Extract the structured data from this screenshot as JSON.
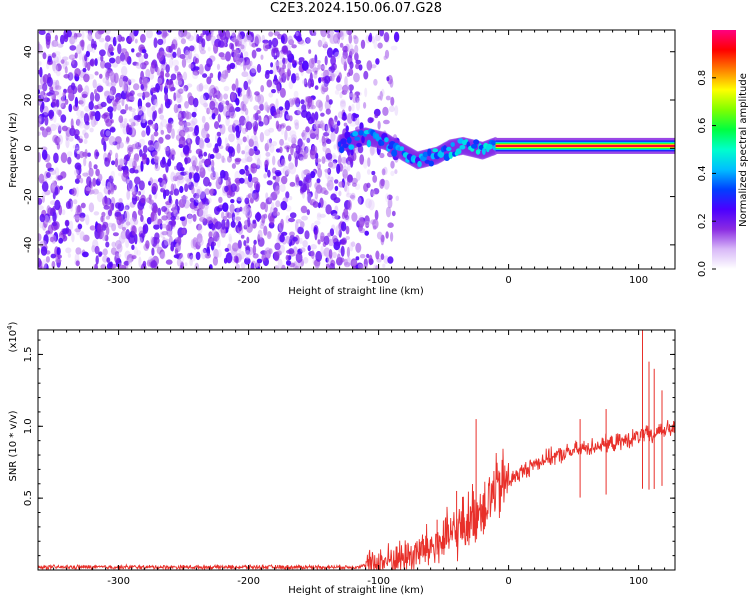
{
  "figure": {
    "title": "C2E3.2024.150.06.07.G28"
  },
  "chart_data": [
    {
      "type": "heatmap",
      "xlabel": "Height of straight line (km)",
      "ylabel": "Frequency (Hz)",
      "xlim": [
        -362,
        128
      ],
      "ylim": [
        -50,
        49
      ],
      "xticks": [
        -300,
        -200,
        -100,
        0,
        100
      ],
      "yticks": [
        -40,
        -20,
        0,
        20,
        40
      ],
      "colorbar": {
        "label": "Normalized spectral amplitude",
        "range": [
          0,
          1
        ],
        "ticks": [
          "0.0",
          "0.2",
          "0.4",
          "0.6",
          "0.8"
        ],
        "colormap": [
          "#ffffff",
          "#d8b8f8",
          "#8a2be2",
          "#4b00ff",
          "#0040ff",
          "#00bfff",
          "#00ffcc",
          "#00ff40",
          "#80ff00",
          "#ffff00",
          "#ff8000",
          "#ff0000",
          "#ff0080"
        ]
      },
      "noise_region": {
        "x": [
          -362,
          -105
        ],
        "y": [
          -50,
          49
        ],
        "description_level": 0.3
      },
      "transition_region": {
        "x": [
          -130,
          -40
        ],
        "center_freq": [
          [
            -130,
            2
          ],
          [
            -110,
            5
          ],
          [
            -95,
            3
          ],
          [
            -80,
            -2
          ],
          [
            -70,
            -5
          ],
          [
            -55,
            -3
          ],
          [
            -45,
            0
          ],
          [
            -35,
            1
          ],
          [
            -20,
            -1
          ],
          [
            -10,
            1
          ]
        ]
      },
      "ridge": {
        "x": [
          -10,
          128
        ],
        "center_freq": 1,
        "peak_level": 0.95
      }
    },
    {
      "type": "line",
      "xlabel": "Height of straight line (km)",
      "ylabel": "SNR (10 * v/v)",
      "y_multiplier": "(x10",
      "y_multiplier_exp": "4",
      "y_multiplier_close": ")",
      "xlim": [
        -362,
        128
      ],
      "ylim": [
        0,
        1.67
      ],
      "xticks": [
        -300,
        -200,
        -100,
        0,
        100
      ],
      "yticks": [
        0.5,
        1.0,
        1.5
      ],
      "ytick_labels": [
        "0.5",
        "1.0",
        "1.5"
      ],
      "color": "#e8302a",
      "series": [
        {
          "x": [
            -362,
            -300,
            -200,
            -150,
            -120,
            -110,
            -100,
            -90,
            -80,
            -70,
            -60,
            -50,
            -40,
            -30,
            -20,
            -10,
            0,
            10,
            20,
            30,
            40,
            50,
            60,
            70,
            80,
            90,
            100,
            105,
            110,
            115,
            120,
            128
          ],
          "y": [
            0.02,
            0.02,
            0.02,
            0.02,
            0.02,
            0.03,
            0.05,
            0.07,
            0.09,
            0.12,
            0.16,
            0.2,
            0.27,
            0.35,
            0.45,
            0.55,
            0.62,
            0.68,
            0.74,
            0.78,
            0.8,
            0.83,
            0.85,
            0.87,
            0.88,
            0.9,
            0.93,
            0.95,
            0.92,
            0.97,
            0.98,
            0.98
          ]
        }
      ],
      "spikes": [
        {
          "x": -25,
          "y": 1.05
        },
        {
          "x": -55,
          "y": 0.35
        },
        {
          "x": -40,
          "y": 0.55
        },
        {
          "x": 55,
          "y": 1.05
        },
        {
          "x": 75,
          "y": 1.12
        },
        {
          "x": 103,
          "y": 1.67
        },
        {
          "x": 108,
          "y": 1.45
        },
        {
          "x": 112,
          "y": 1.4
        },
        {
          "x": 118,
          "y": 1.25
        }
      ]
    }
  ]
}
